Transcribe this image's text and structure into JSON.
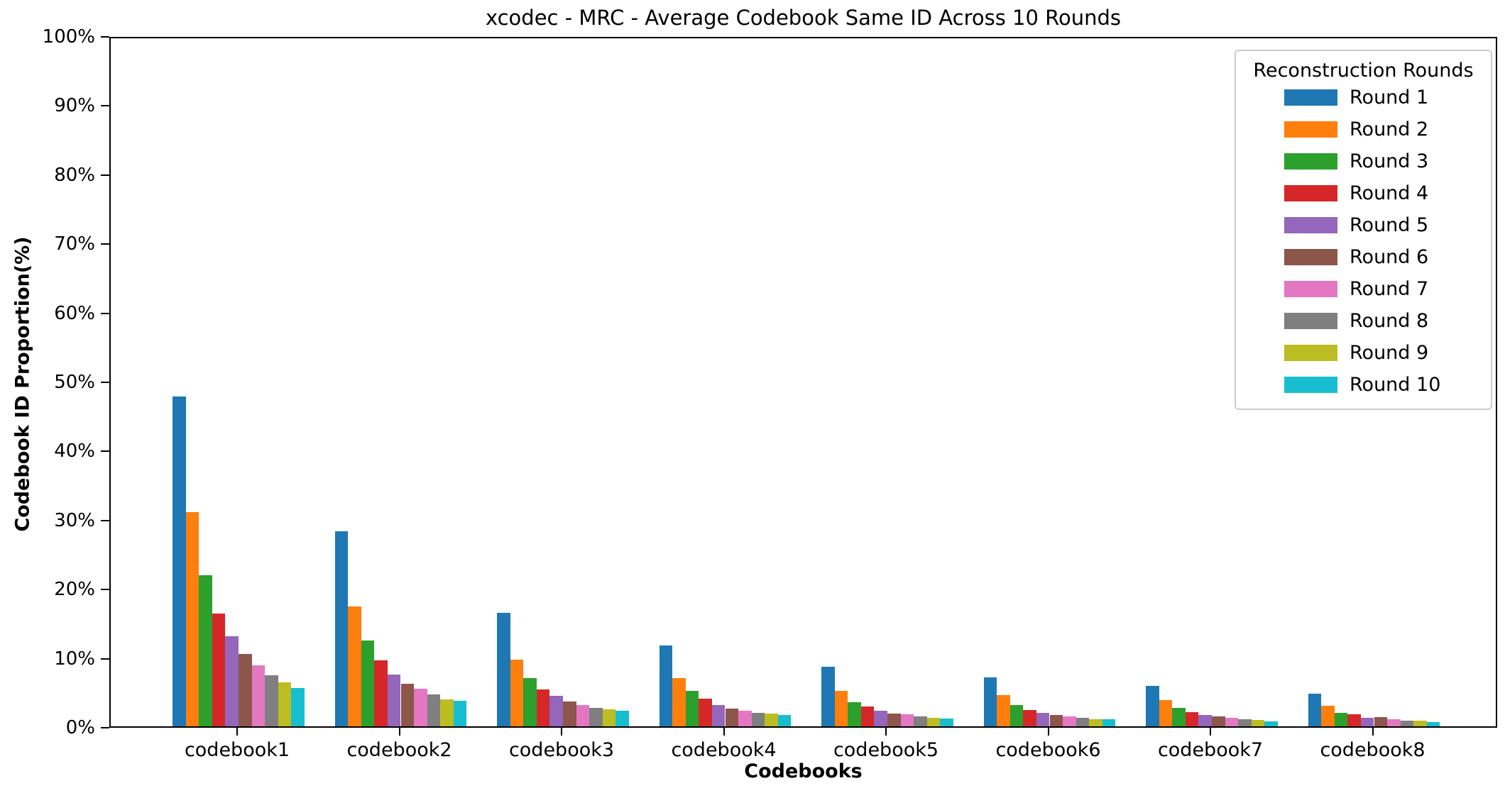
{
  "chart_data": {
    "type": "bar",
    "title": "xcodec - MRC - Average Codebook Same ID Across 10 Rounds",
    "xlabel": "Codebooks",
    "ylabel": "Codebook ID Proportion(%)",
    "ylim": [
      0,
      100
    ],
    "ytick_labels": [
      "0%",
      "10%",
      "20%",
      "30%",
      "40%",
      "50%",
      "60%",
      "70%",
      "80%",
      "90%",
      "100%"
    ],
    "grid": false,
    "legend_title": "Reconstruction Rounds",
    "legend_position": "upper right",
    "categories": [
      "codebook1",
      "codebook2",
      "codebook3",
      "codebook4",
      "codebook5",
      "codebook6",
      "codebook7",
      "codebook8"
    ],
    "series": [
      {
        "name": "Round 1",
        "color": "#1f77b4",
        "values": [
          47.7,
          28.2,
          16.4,
          11.7,
          8.6,
          7.1,
          5.9,
          4.7
        ]
      },
      {
        "name": "Round 2",
        "color": "#ff7f0e",
        "values": [
          31.0,
          17.4,
          9.7,
          7.0,
          5.1,
          4.5,
          3.8,
          3.0
        ]
      },
      {
        "name": "Round 3",
        "color": "#2ca02c",
        "values": [
          21.9,
          12.4,
          7.0,
          5.1,
          3.5,
          3.1,
          2.7,
          2.0
        ]
      },
      {
        "name": "Round 4",
        "color": "#d62728",
        "values": [
          16.3,
          9.5,
          5.3,
          4.0,
          2.9,
          2.4,
          2.1,
          1.7
        ]
      },
      {
        "name": "Round 5",
        "color": "#9467bd",
        "values": [
          13.0,
          7.5,
          4.4,
          3.1,
          2.3,
          2.0,
          1.6,
          1.2
        ]
      },
      {
        "name": "Round 6",
        "color": "#8c564b",
        "values": [
          10.5,
          6.2,
          3.6,
          2.6,
          1.9,
          1.6,
          1.4,
          1.3
        ]
      },
      {
        "name": "Round 7",
        "color": "#e377c2",
        "values": [
          8.8,
          5.4,
          3.1,
          2.3,
          1.7,
          1.4,
          1.2,
          1.0
        ]
      },
      {
        "name": "Round 8",
        "color": "#7f7f7f",
        "values": [
          7.4,
          4.6,
          2.7,
          2.0,
          1.4,
          1.2,
          1.0,
          0.8
        ]
      },
      {
        "name": "Round 9",
        "color": "#bcbd22",
        "values": [
          6.4,
          3.9,
          2.5,
          1.8,
          1.2,
          1.0,
          0.9,
          0.8
        ]
      },
      {
        "name": "Round 10",
        "color": "#17becf",
        "values": [
          5.5,
          3.7,
          2.3,
          1.6,
          1.1,
          1.0,
          0.7,
          0.6
        ]
      }
    ]
  }
}
